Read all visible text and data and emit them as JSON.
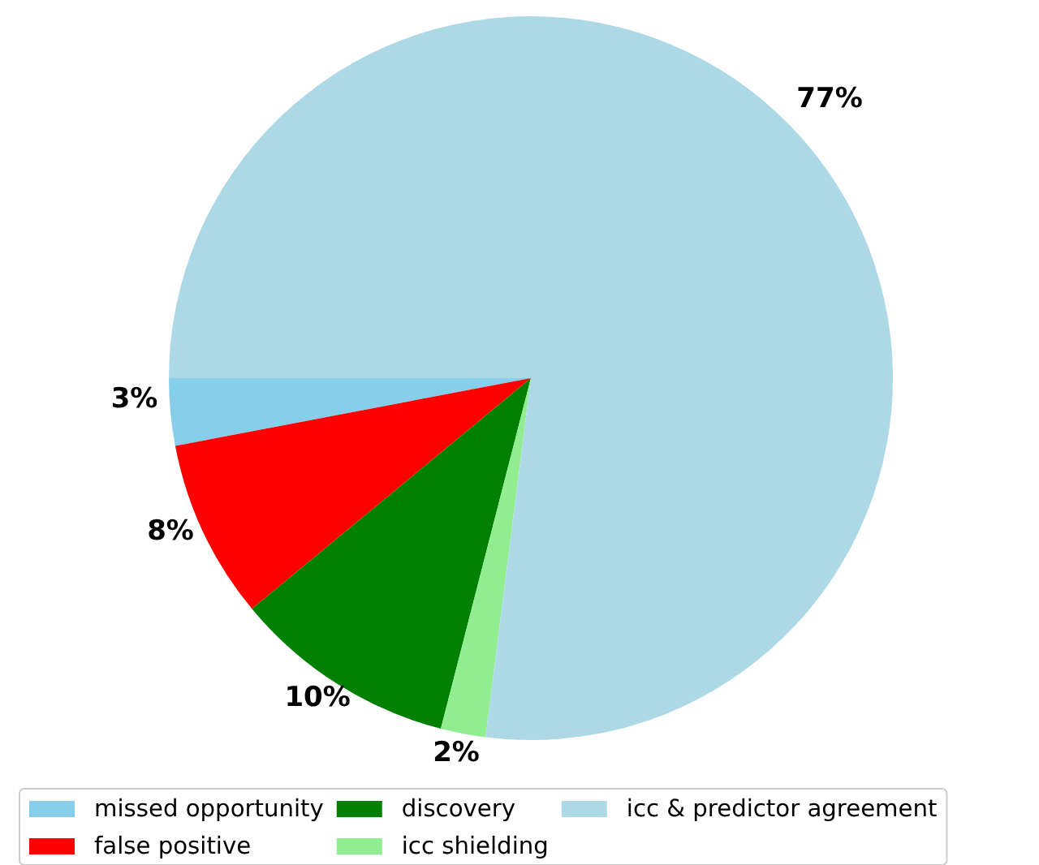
{
  "chart_data": {
    "type": "pie",
    "categories": [
      "missed opportunity",
      "false positive",
      "discovery",
      "icc shielding",
      "icc & predictor agreement"
    ],
    "values": [
      3,
      8,
      10,
      2,
      77
    ],
    "colors": [
      "#87ceeb",
      "#ff0000",
      "#008000",
      "#90ee90",
      "#add8e6"
    ],
    "value_labels": [
      "3%",
      "8%",
      "10%",
      "2%",
      "77%"
    ],
    "legend": "bottom"
  }
}
